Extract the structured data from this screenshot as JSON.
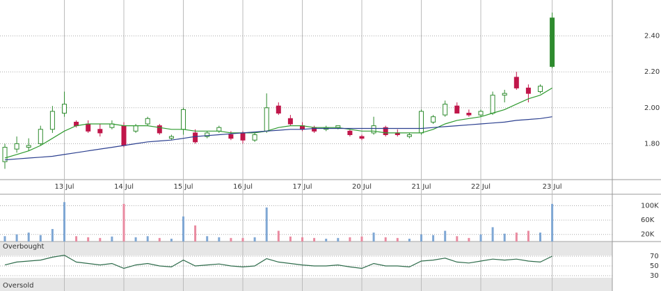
{
  "chart_data": {
    "type": "candlestick",
    "xticks": [
      {
        "value": 5,
        "label": "13 Jul"
      },
      {
        "value": 10,
        "label": "14 Jul"
      },
      {
        "value": 15,
        "label": "15 Jul"
      },
      {
        "value": 20,
        "label": "16 Jul"
      },
      {
        "value": 25,
        "label": "17 Jul"
      },
      {
        "value": 30,
        "label": "20 Jul"
      },
      {
        "value": 35,
        "label": "21 Jul"
      },
      {
        "value": 40,
        "label": "22 Jul"
      },
      {
        "value": 46,
        "label": "23 Jul"
      }
    ],
    "open": [
      1.7,
      1.77,
      1.78,
      1.8,
      1.88,
      1.97,
      1.92,
      1.91,
      1.88,
      1.89,
      1.9,
      1.87,
      1.91,
      1.9,
      1.83,
      1.88,
      1.86,
      1.84,
      1.87,
      1.85,
      1.86,
      1.82,
      1.87,
      2.01,
      1.94,
      1.9,
      1.89,
      1.88,
      1.89,
      1.87,
      1.84,
      1.86,
      1.89,
      1.86,
      1.84,
      1.86,
      1.92,
      1.96,
      2.01,
      1.97,
      1.96,
      1.97,
      2.07,
      2.17,
      2.11,
      2.09,
      2.23
    ],
    "high": [
      1.8,
      1.84,
      1.83,
      1.9,
      2.01,
      2.09,
      1.93,
      1.93,
      1.91,
      1.93,
      1.92,
      1.91,
      1.95,
      1.91,
      1.85,
      2.0,
      1.88,
      1.87,
      1.9,
      1.87,
      1.87,
      1.86,
      2.08,
      2.03,
      1.96,
      1.92,
      1.9,
      1.9,
      1.9,
      1.88,
      1.85,
      1.95,
      1.9,
      1.88,
      1.86,
      1.99,
      1.96,
      2.04,
      2.03,
      1.99,
      1.99,
      2.09,
      2.1,
      2.2,
      2.13,
      2.13,
      2.53
    ],
    "low": [
      1.66,
      1.75,
      1.76,
      1.79,
      1.86,
      1.95,
      1.89,
      1.86,
      1.84,
      1.88,
      1.78,
      1.86,
      1.9,
      1.85,
      1.82,
      1.85,
      1.8,
      1.83,
      1.86,
      1.82,
      1.8,
      1.81,
      1.86,
      1.96,
      1.9,
      1.87,
      1.86,
      1.87,
      1.88,
      1.84,
      1.82,
      1.85,
      1.84,
      1.84,
      1.83,
      1.85,
      1.91,
      1.95,
      1.97,
      1.95,
      1.95,
      1.96,
      2.03,
      2.1,
      2.03,
      2.08,
      2.22
    ],
    "close": [
      1.78,
      1.8,
      1.79,
      1.88,
      1.98,
      2.02,
      1.9,
      1.87,
      1.86,
      1.91,
      1.79,
      1.9,
      1.94,
      1.86,
      1.84,
      1.99,
      1.81,
      1.86,
      1.89,
      1.83,
      1.82,
      1.85,
      2.0,
      1.97,
      1.91,
      1.88,
      1.87,
      1.89,
      1.9,
      1.85,
      1.83,
      1.9,
      1.85,
      1.85,
      1.85,
      1.98,
      1.95,
      2.02,
      1.97,
      1.96,
      1.98,
      2.07,
      2.08,
      2.11,
      2.08,
      2.12,
      2.5
    ],
    "up_color": "#2e8b2e",
    "down_color": "#c0164a",
    "ylim": [
      1.6,
      2.6
    ],
    "yticks": [
      {
        "value": 2.4,
        "label": "2.40"
      },
      {
        "value": 2.2,
        "label": "2.20"
      },
      {
        "value": 2.0,
        "label": "2.00"
      },
      {
        "value": 1.8,
        "label": "1.80"
      }
    ],
    "ma_series": [
      {
        "color": "#2e9a2e",
        "values": [
          1.72,
          1.74,
          1.76,
          1.79,
          1.83,
          1.87,
          1.9,
          1.91,
          1.91,
          1.91,
          1.9,
          1.9,
          1.9,
          1.89,
          1.88,
          1.88,
          1.87,
          1.87,
          1.87,
          1.86,
          1.86,
          1.86,
          1.87,
          1.89,
          1.9,
          1.9,
          1.89,
          1.89,
          1.89,
          1.88,
          1.87,
          1.87,
          1.86,
          1.86,
          1.86,
          1.86,
          1.88,
          1.91,
          1.93,
          1.94,
          1.95,
          1.97,
          1.99,
          2.02,
          2.05,
          2.07,
          2.11
        ]
      },
      {
        "color": "#2b3f8f",
        "values": [
          1.71,
          1.715,
          1.72,
          1.725,
          1.73,
          1.74,
          1.75,
          1.76,
          1.77,
          1.78,
          1.79,
          1.8,
          1.81,
          1.815,
          1.82,
          1.83,
          1.84,
          1.845,
          1.85,
          1.855,
          1.86,
          1.865,
          1.87,
          1.875,
          1.88,
          1.88,
          1.885,
          1.885,
          1.885,
          1.885,
          1.885,
          1.885,
          1.885,
          1.885,
          1.885,
          1.885,
          1.89,
          1.895,
          1.9,
          1.905,
          1.91,
          1.915,
          1.92,
          1.93,
          1.935,
          1.94,
          1.95
        ]
      }
    ],
    "volume": {
      "values": [
        15000,
        20000,
        25000,
        18000,
        35000,
        110000,
        15000,
        12000,
        10000,
        14000,
        105000,
        12000,
        15000,
        10000,
        8000,
        70000,
        45000,
        15000,
        12000,
        10000,
        10000,
        12000,
        95000,
        30000,
        14000,
        12000,
        10000,
        8000,
        10000,
        12000,
        14000,
        25000,
        12000,
        10000,
        8000,
        20000,
        18000,
        30000,
        15000,
        10000,
        20000,
        40000,
        22000,
        25000,
        30000,
        25000,
        105000
      ],
      "up_color": "#7fa7d4",
      "down_color": "#e98aa0",
      "ylim": [
        0,
        130000
      ],
      "yticks": [
        {
          "value": 100000,
          "label": "100K"
        },
        {
          "value": 60000,
          "label": "60K"
        },
        {
          "value": 20000,
          "label": "20K"
        }
      ]
    },
    "rsi": {
      "values": [
        52,
        58,
        60,
        62,
        68,
        72,
        58,
        55,
        52,
        55,
        45,
        52,
        55,
        50,
        48,
        62,
        50,
        52,
        54,
        50,
        48,
        50,
        65,
        58,
        55,
        52,
        50,
        50,
        52,
        48,
        45,
        55,
        50,
        50,
        48,
        60,
        62,
        66,
        58,
        56,
        60,
        64,
        62,
        64,
        60,
        58,
        70
      ],
      "color": "#2d6b4a",
      "ylim": [
        0,
        100
      ],
      "yticks": [
        70,
        50,
        30
      ],
      "overbought_label": "Overbought",
      "oversold_label": "Oversold"
    }
  }
}
